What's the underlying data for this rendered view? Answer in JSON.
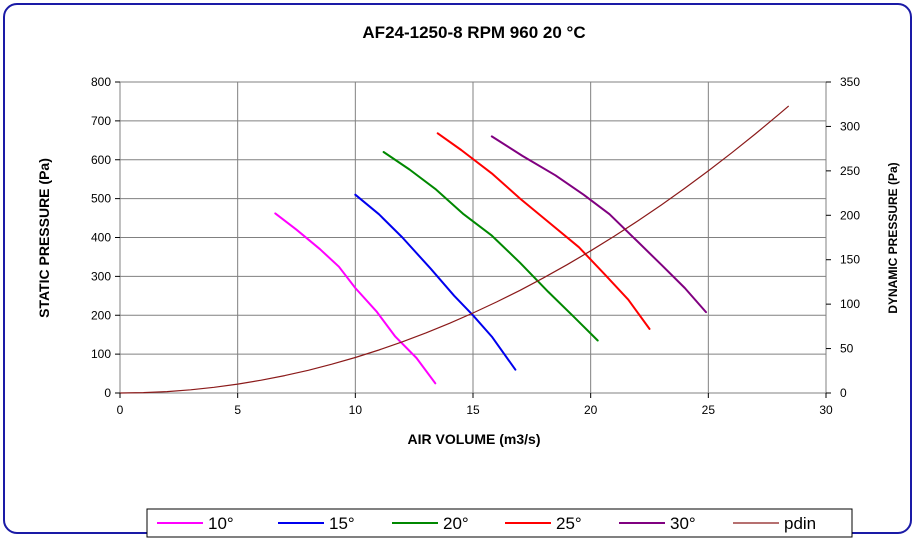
{
  "chart_data": {
    "type": "line",
    "title": "AF24-1250-8 RPM 960 20 °C",
    "xlabel": "AIR VOLUME (m3/s)",
    "ylabel": "STATIC PRESSURE (Pa)",
    "y2label": "DYNAMIC PRESSURE (Pa)",
    "xlim": [
      0,
      30
    ],
    "ylim": [
      0,
      800
    ],
    "y2lim": [
      0,
      350
    ],
    "xticks": [
      "0",
      "5",
      "10",
      "15",
      "20",
      "25",
      "30"
    ],
    "yticks": [
      "0",
      "100",
      "200",
      "300",
      "400",
      "500",
      "600",
      "700",
      "800"
    ],
    "y2ticks": [
      "0",
      "50",
      "100",
      "150",
      "200",
      "250",
      "300",
      "350"
    ],
    "grid": true,
    "legend_position": "bottom",
    "series": [
      {
        "name": "10°",
        "color": "#ff00ff",
        "axis": "left",
        "x": [
          6.6,
          7.5,
          8.5,
          9.3,
          10.0,
          10.9,
          11.7,
          12.6,
          13.4
        ],
        "y": [
          462,
          420,
          370,
          325,
          270,
          210,
          145,
          90,
          25
        ]
      },
      {
        "name": "15°",
        "color": "#0000ee",
        "axis": "left",
        "x": [
          10.0,
          11.0,
          12.0,
          13.2,
          14.2,
          15.0,
          15.8,
          16.8
        ],
        "y": [
          510,
          460,
          400,
          320,
          250,
          200,
          145,
          60
        ]
      },
      {
        "name": "20°",
        "color": "#008800",
        "axis": "left",
        "x": [
          11.2,
          12.3,
          13.4,
          14.6,
          15.8,
          17.0,
          18.2,
          19.3,
          20.3
        ],
        "y": [
          620,
          575,
          525,
          460,
          405,
          335,
          260,
          195,
          135
        ]
      },
      {
        "name": "25°",
        "color": "#ff0000",
        "axis": "left",
        "x": [
          13.5,
          14.5,
          15.8,
          17.0,
          18.3,
          19.5,
          20.6,
          21.6,
          22.5
        ],
        "y": [
          668,
          625,
          565,
          500,
          435,
          375,
          305,
          240,
          165
        ]
      },
      {
        "name": "30°",
        "color": "#800080",
        "axis": "left",
        "x": [
          15.8,
          17.1,
          18.5,
          19.7,
          20.8,
          21.9,
          23.0,
          24.0,
          24.9
        ],
        "y": [
          660,
          610,
          560,
          510,
          460,
          395,
          330,
          270,
          208
        ]
      },
      {
        "name": "pdin",
        "color": "#8b1a1a",
        "axis": "right",
        "x": [
          0,
          1,
          2,
          3,
          4,
          5,
          6,
          7,
          8,
          9,
          10,
          11,
          12,
          13,
          14,
          15,
          16,
          17,
          18,
          19,
          20,
          21,
          22,
          23,
          24,
          25,
          26,
          27,
          28,
          28.4
        ],
        "y": [
          0,
          0.4,
          1.6,
          3.6,
          6.4,
          10.0,
          14.4,
          19.6,
          25.6,
          32.4,
          40.0,
          48.4,
          57.6,
          67.6,
          78.4,
          90.0,
          102.4,
          115.6,
          129.6,
          144.4,
          160.0,
          176.4,
          193.6,
          211.6,
          230.4,
          250.0,
          270.4,
          291.6,
          313.6,
          322.6
        ]
      }
    ]
  }
}
